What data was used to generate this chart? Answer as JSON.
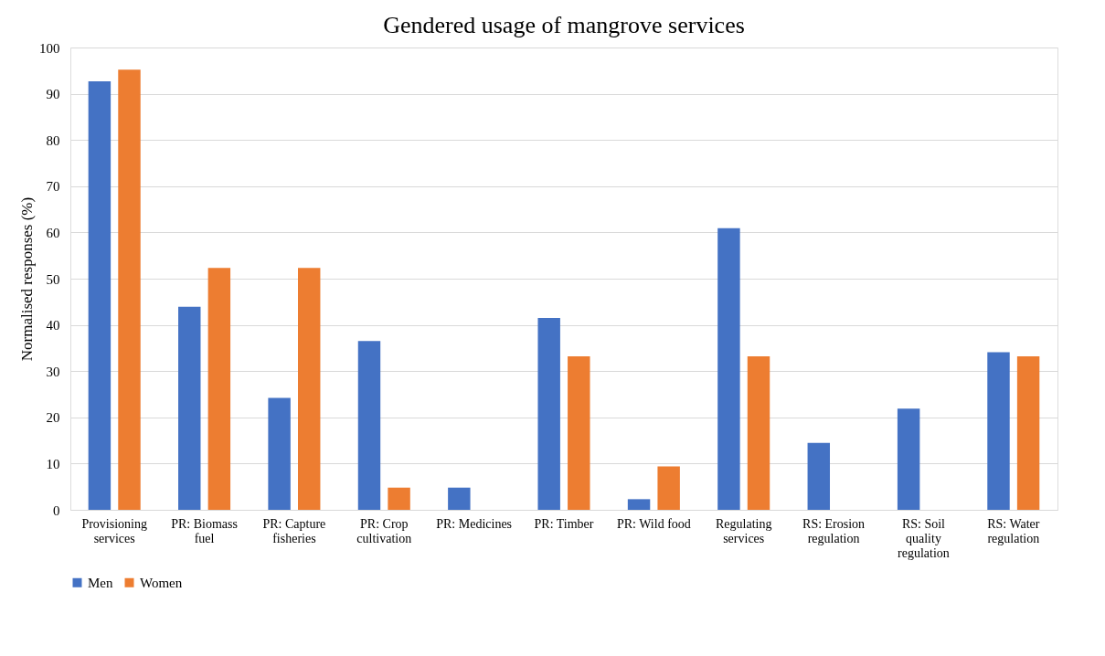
{
  "chart_data": {
    "type": "bar",
    "title": "Gendered usage of mangrove services",
    "ylabel": "Normalised responses (%)",
    "categories": [
      "Provisioning services",
      "PR: Biomass fuel",
      "PR: Capture fisheries",
      "PR: Crop cultivation",
      "PR: Medicines",
      "PR: Timber",
      "PR: Wild food",
      "Regulating services",
      "RS: Erosion regulation",
      "RS: Soil quality regulation",
      "RS: Water regulation"
    ],
    "series": [
      {
        "name": "Men",
        "color": "#4472c4",
        "values": [
          92.7,
          43.9,
          24.2,
          36.5,
          4.8,
          41.5,
          2.3,
          60.9,
          14.5,
          21.9,
          34.1
        ]
      },
      {
        "name": "Women",
        "color": "#ed7d31",
        "values": [
          95.2,
          52.3,
          52.3,
          4.8,
          0,
          33.2,
          9.4,
          33.2,
          0,
          0,
          33.2
        ]
      }
    ],
    "ylim": [
      0,
      100
    ],
    "yticks": [
      0,
      10,
      20,
      30,
      40,
      50,
      60,
      70,
      80,
      90,
      100
    ],
    "grid": "y",
    "legend": "bottom"
  }
}
